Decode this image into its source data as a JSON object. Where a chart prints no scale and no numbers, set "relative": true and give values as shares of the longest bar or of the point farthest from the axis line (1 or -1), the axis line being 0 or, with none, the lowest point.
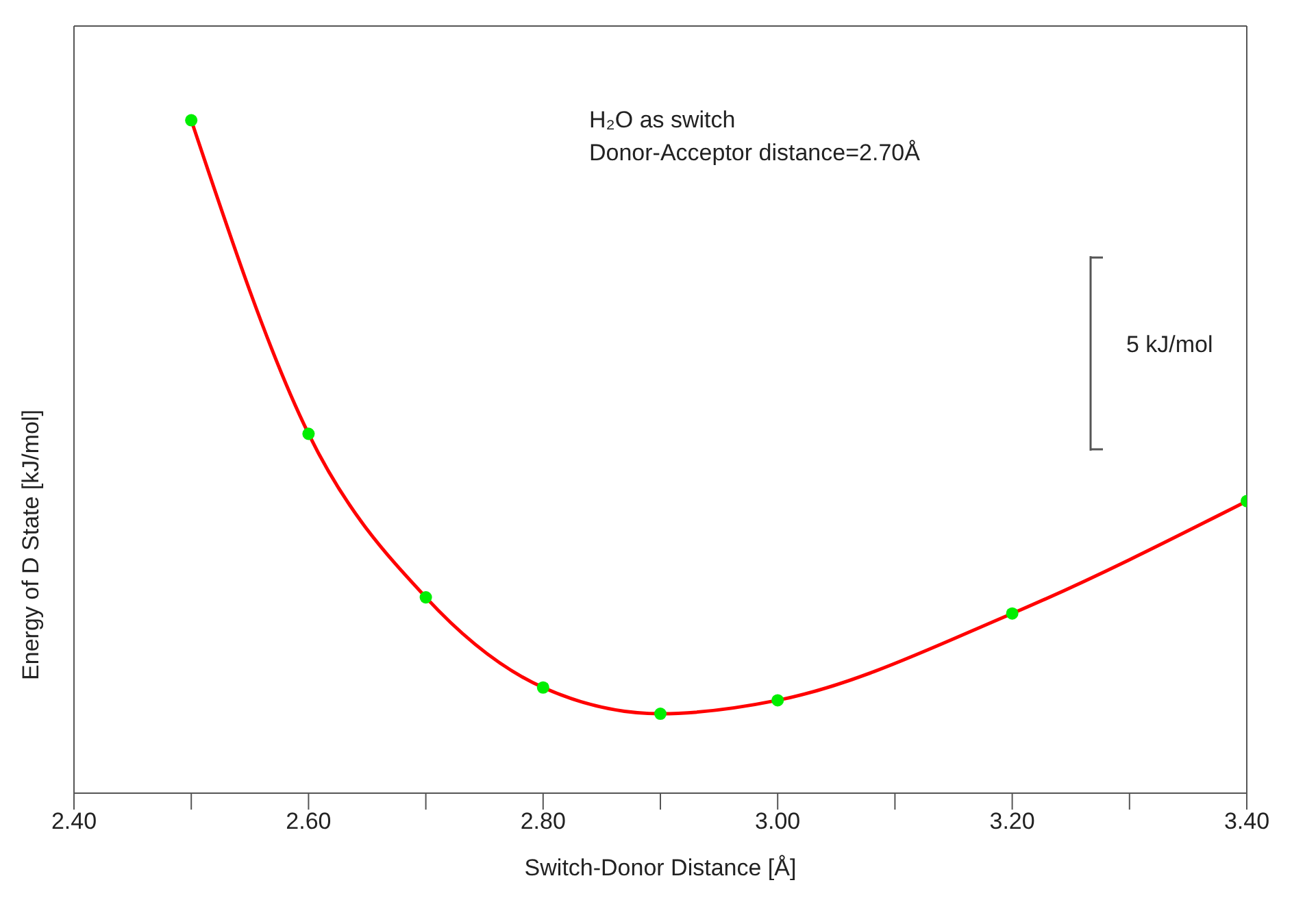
{
  "chart_data": {
    "type": "line",
    "relative": true,
    "xlabel": "Switch-Donor Distance [Å]",
    "ylabel": "Energy of D State [kJ/mol]",
    "xlim": [
      2.4,
      3.4
    ],
    "xticks": [
      {
        "value": 2.4,
        "label": "2.40"
      },
      {
        "value": 2.5,
        "label": null
      },
      {
        "value": 2.6,
        "label": "2.60"
      },
      {
        "value": 2.7,
        "label": null
      },
      {
        "value": 2.8,
        "label": "2.80"
      },
      {
        "value": 2.9,
        "label": null
      },
      {
        "value": 3.0,
        "label": "3.00"
      },
      {
        "value": 3.1,
        "label": null
      },
      {
        "value": 3.2,
        "label": "3.20"
      },
      {
        "value": 3.3,
        "label": null
      },
      {
        "value": 3.4,
        "label": "3.40"
      }
    ],
    "series": [
      {
        "color": "#ff0000",
        "marker": "none",
        "x": [
          2.5,
          2.6,
          2.7,
          2.8,
          2.9,
          3.0,
          3.2,
          3.4
        ],
        "values": [
          1,
          0.534,
          0.291,
          0.157,
          0.118,
          0.138,
          0.267,
          0.434
        ]
      },
      {
        "type": "scatter",
        "color": "#00ee00",
        "marker": "circle",
        "x": [
          2.5,
          2.6,
          2.7,
          2.8,
          2.9,
          3.0,
          3.2,
          3.4
        ],
        "values": [
          1,
          0.534,
          0.291,
          0.157,
          0.118,
          0.138,
          0.267,
          0.434
        ]
      }
    ],
    "grid": false,
    "annotations": [
      "H₂O as switch",
      "Donor-Acceptor distance=2.70Å",
      "5 kJ/mol"
    ]
  }
}
